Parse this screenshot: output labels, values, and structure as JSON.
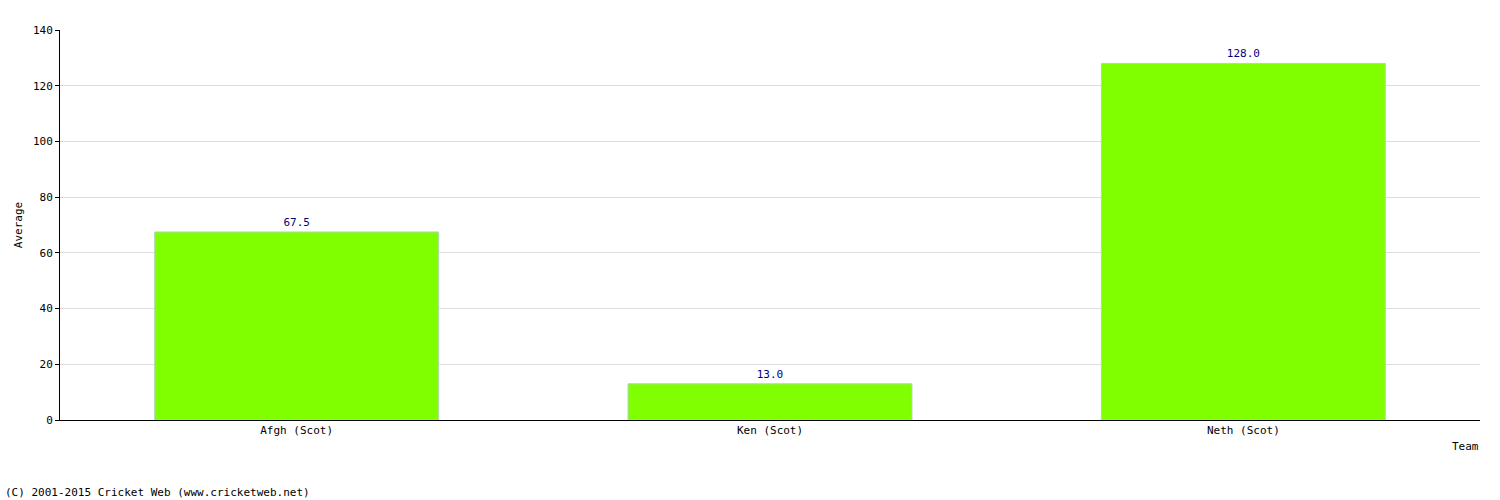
{
  "chart_data": {
    "type": "bar",
    "categories": [
      "Afgh (Scot)",
      "Ken (Scot)",
      "Neth (Scot)"
    ],
    "values": [
      67.5,
      13.0,
      128.0
    ],
    "value_labels": [
      "67.5",
      "13.0",
      "128.0"
    ],
    "data_labels": true,
    "color": "#80ff00",
    "x_label": "Team",
    "y_label": "Average",
    "ylim": [
      0,
      140
    ],
    "yticks": [
      0,
      20,
      40,
      60,
      80,
      100,
      120,
      140
    ],
    "grid": true,
    "annotations": [
      "(C) 2001-2015 Cricket Web (www.cricketweb.net)"
    ]
  }
}
